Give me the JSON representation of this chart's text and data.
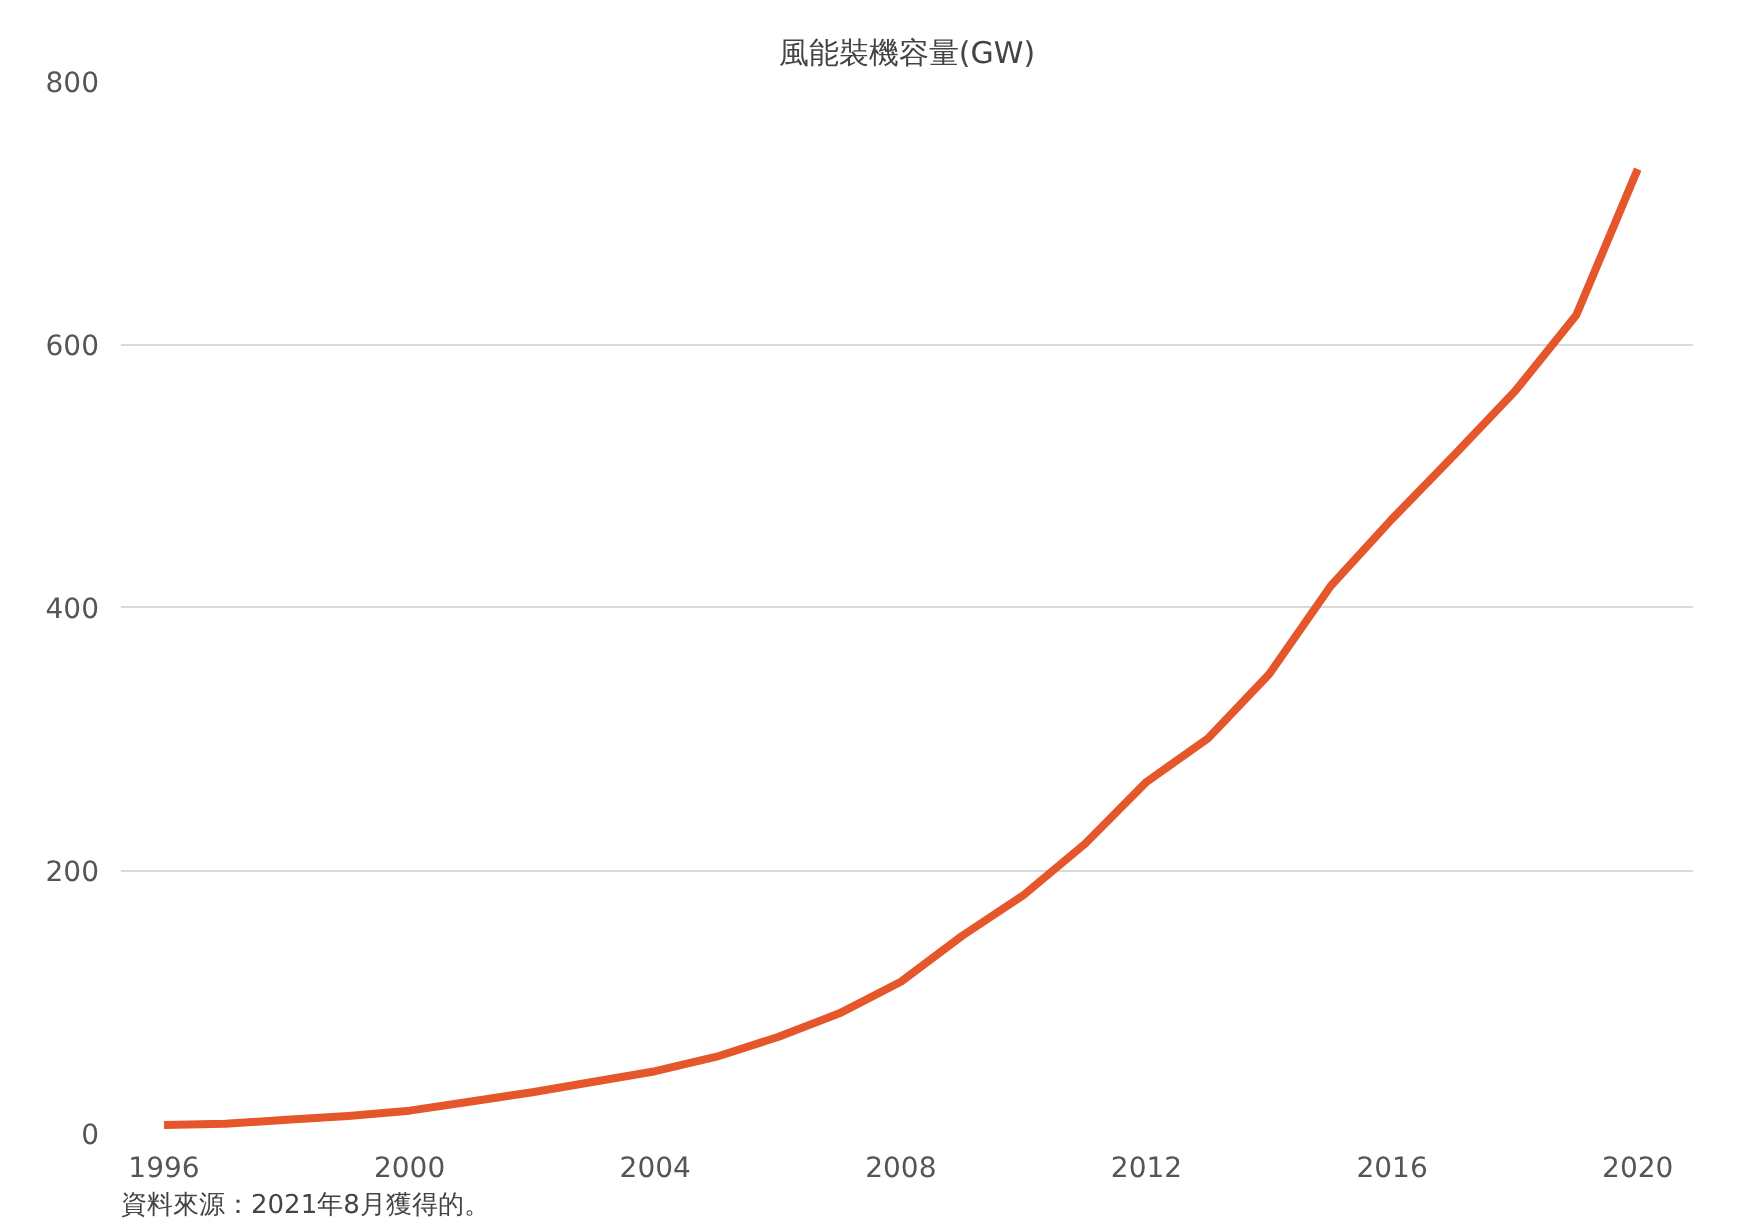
{
  "chart_data": {
    "type": "line",
    "title": "風能裝機容量(GW)",
    "x": [
      1996,
      1997,
      1998,
      1999,
      2000,
      2001,
      2002,
      2003,
      2004,
      2005,
      2006,
      2007,
      2008,
      2009,
      2010,
      2011,
      2012,
      2013,
      2014,
      2015,
      2016,
      2017,
      2018,
      2019,
      2020
    ],
    "series": [
      {
        "color": "#e5562b",
        "values": [
          6,
          7,
          10,
          13,
          17,
          24,
          31,
          39,
          47,
          58,
          73,
          91,
          115,
          150,
          181,
          220,
          267,
          300,
          349,
          416,
          467,
          515,
          564,
          622,
          733
        ]
      }
    ],
    "xlim": [
      1995.3,
      2020.9
    ],
    "xticks": [
      1996,
      2000,
      2004,
      2008,
      2012,
      2016,
      2020
    ],
    "ylim": [
      0,
      800
    ],
    "yticks": [
      0,
      200,
      400,
      600,
      800
    ],
    "grid": "y",
    "marker": "none",
    "line_style": "solid",
    "annotations": [
      "資料來源：2021年8月獲得的。"
    ]
  }
}
